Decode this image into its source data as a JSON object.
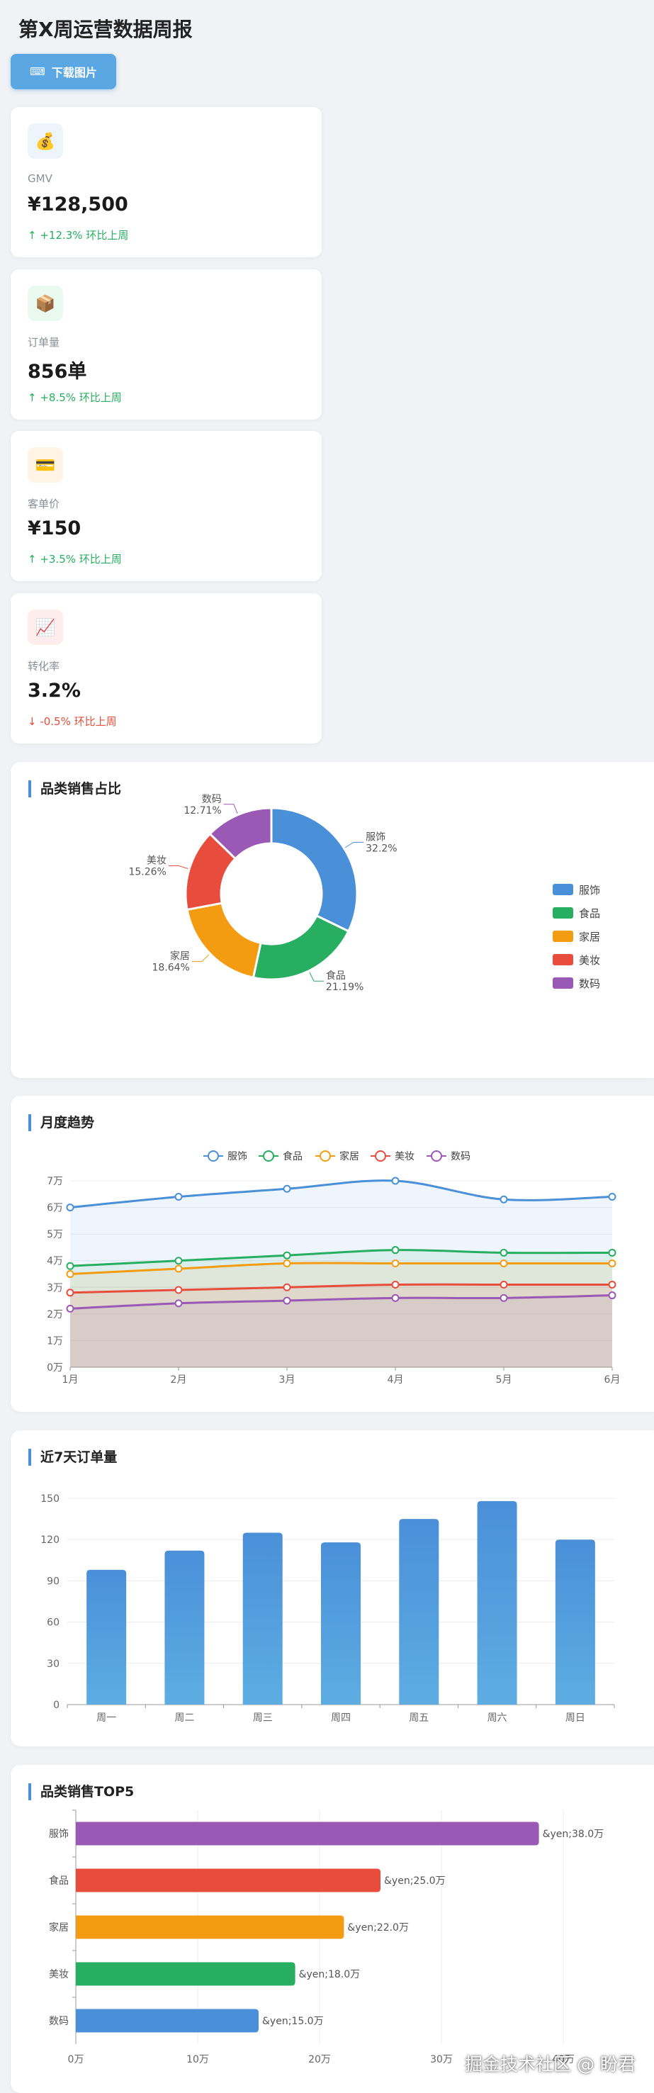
{
  "page": {
    "title": "第X周运营数据周报",
    "download_label": "下载图片",
    "download_icon": "⌨",
    "watermark": "掘金技术社区 @ 盼君"
  },
  "kpis": [
    {
      "id": "gmv",
      "icon": "💰",
      "icon_name": "money-bag-icon",
      "bg": "#eef4fb",
      "label": "GMV",
      "value": "¥128,500",
      "change": "↑ +12.3% 环比上周",
      "trend": "up"
    },
    {
      "id": "orders",
      "icon": "📦",
      "icon_name": "package-icon",
      "bg": "#eafaf1",
      "label": "订单量",
      "value": "856单",
      "change": "↑ +8.5% 环比上周",
      "trend": "up"
    },
    {
      "id": "aov",
      "icon": "💳",
      "icon_name": "credit-card-icon",
      "bg": "#fef5e7",
      "label": "客单价",
      "value": "¥150",
      "change": "↑ +3.5% 环比上周",
      "trend": "up"
    },
    {
      "id": "cvr",
      "icon": "📈",
      "icon_name": "chart-icon",
      "bg": "#fdedec",
      "label": "转化率",
      "value": "3.2%",
      "change": "↓ -0.5% 环比上周",
      "trend": "down"
    }
  ],
  "colors": {
    "服饰": "#4a90d9",
    "食品": "#27ae60",
    "家居": "#f39c12",
    "美妆": "#e74c3c",
    "数码": "#9b59b6",
    "bar": "#4a90d9"
  },
  "chart_data": [
    {
      "type": "pie",
      "title": "品类销售占比",
      "categories": [
        "服饰",
        "食品",
        "家居",
        "美妆",
        "数码"
      ],
      "values": [
        32.2,
        21.19,
        18.64,
        15.26,
        12.71
      ],
      "value_labels": [
        "32.2%",
        "21.19%",
        "18.64%",
        "15.26%",
        "12.71%"
      ],
      "legend": "right",
      "style": "donut"
    },
    {
      "type": "line",
      "title": "月度趋势",
      "x": [
        "1月",
        "2月",
        "3月",
        "4月",
        "5月",
        "6月"
      ],
      "series": [
        {
          "name": "服饰",
          "values": [
            6.0,
            6.4,
            6.7,
            7.0,
            6.3,
            6.4
          ]
        },
        {
          "name": "食品",
          "values": [
            3.8,
            4.0,
            4.2,
            4.4,
            4.3,
            4.3
          ]
        },
        {
          "name": "家居",
          "values": [
            3.5,
            3.7,
            3.9,
            3.9,
            3.9,
            3.9
          ]
        },
        {
          "name": "美妆",
          "values": [
            2.8,
            2.9,
            3.0,
            3.1,
            3.1,
            3.1
          ]
        },
        {
          "name": "数码",
          "values": [
            2.2,
            2.4,
            2.5,
            2.6,
            2.6,
            2.7
          ]
        }
      ],
      "y_ticks": [
        "0万",
        "1万",
        "2万",
        "3万",
        "4万",
        "5万",
        "6万",
        "7万"
      ],
      "ylim": [
        0,
        7
      ],
      "legend": "top",
      "grid": true
    },
    {
      "type": "bar",
      "title": "近7天订单量",
      "categories": [
        "周一",
        "周二",
        "周三",
        "周四",
        "周五",
        "周六",
        "周日"
      ],
      "values": [
        98,
        112,
        125,
        118,
        135,
        148,
        120
      ],
      "y_ticks": [
        "0",
        "30",
        "60",
        "90",
        "120",
        "150"
      ],
      "ylim": [
        0,
        150
      ],
      "grid": true
    },
    {
      "type": "bar",
      "orientation": "horizontal",
      "title": "品类销售TOP5",
      "categories": [
        "服饰",
        "食品",
        "家居",
        "美妆",
        "数码"
      ],
      "values": [
        38.0,
        25.0,
        22.0,
        18.0,
        15.0
      ],
      "value_labels": [
        "&yen;38.0万",
        "&yen;25.0万",
        "&yen;22.0万",
        "&yen;18.0万",
        "&yen;15.0万"
      ],
      "bar_colors": [
        "#9b59b6",
        "#e74c3c",
        "#f39c12",
        "#27ae60",
        "#4a90d9"
      ],
      "x_ticks": [
        "0万",
        "10万",
        "20万",
        "30万",
        "40万"
      ],
      "xlim": [
        0,
        40
      ],
      "grid": true
    }
  ]
}
